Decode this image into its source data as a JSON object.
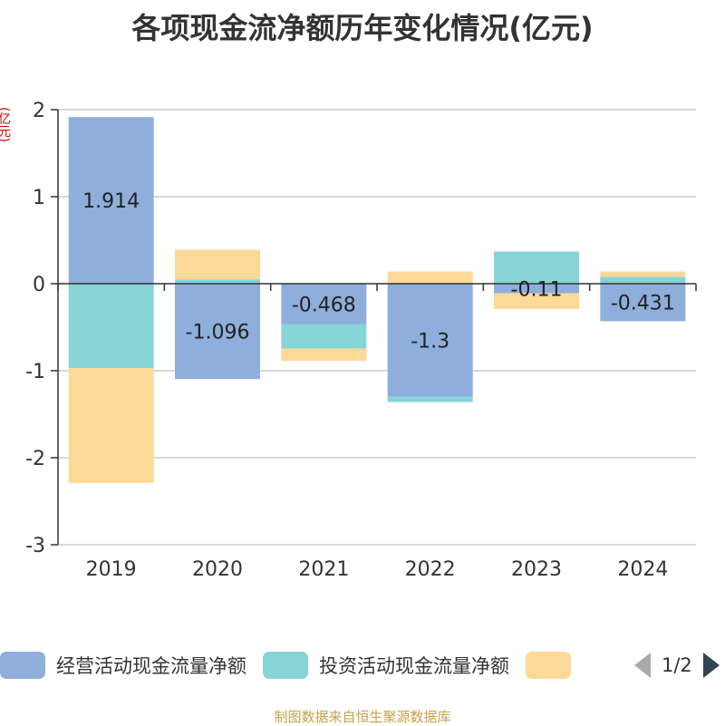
{
  "title": "各项现金流净额历年变化情况(亿元)",
  "unit_label": "(亿元)",
  "source": "制图数据来自恒生聚源数据库",
  "colors": {
    "operating": "#8eaedb",
    "investing": "#86d4d6",
    "financing": "#fdd997",
    "unit": "#cc0000",
    "source": "#c8a14a"
  },
  "legend": {
    "items": [
      {
        "label": "经营活动现金流量净额",
        "color": "#8eaedb"
      },
      {
        "label": "投资活动现金流量净额",
        "color": "#86d4d6"
      },
      {
        "label": "",
        "color": "#fdd997"
      }
    ],
    "page": "1/2"
  },
  "chart_data": {
    "type": "bar",
    "stacked": true,
    "categories": [
      "2019",
      "2020",
      "2021",
      "2022",
      "2023",
      "2024"
    ],
    "series": [
      {
        "name": "经营活动现金流量净额",
        "values": [
          1.914,
          -1.096,
          -0.468,
          -1.3,
          -0.11,
          -0.431
        ]
      },
      {
        "name": "投资活动现金流量净额",
        "values": [
          -0.97,
          0.05,
          -0.28,
          -0.06,
          0.37,
          0.08
        ]
      },
      {
        "name": "",
        "values": [
          -1.32,
          0.34,
          -0.14,
          0.14,
          -0.18,
          0.06
        ]
      }
    ],
    "data_labels": [
      "1.914",
      "-1.096",
      "-0.468",
      "-1.3",
      "-0.11",
      "-0.431"
    ],
    "ylim": [
      -3,
      2
    ],
    "yticks": [
      2,
      1,
      0,
      -1,
      -2,
      -3
    ],
    "ylabel": "(亿元)",
    "grid": true,
    "legend_position": "bottom"
  }
}
